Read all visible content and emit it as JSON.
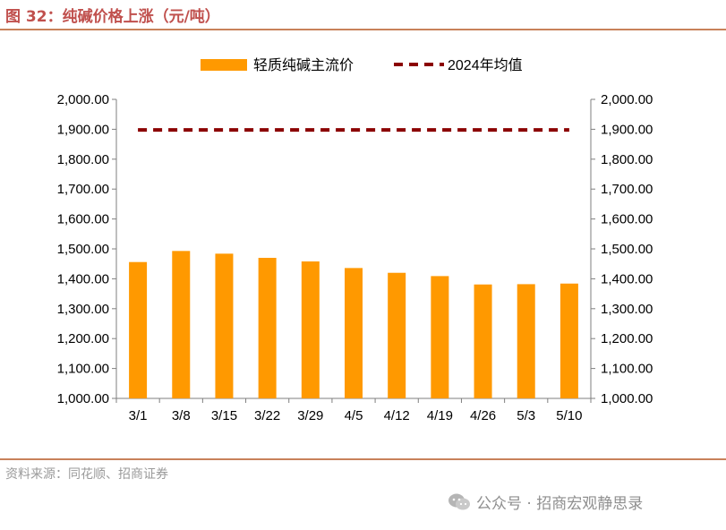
{
  "figure": {
    "title": "图 32：纯碱价格上涨（元/吨）",
    "source": "资料来源：同花顺、招商证券",
    "watermark": "公众号 · 招商宏观静思录"
  },
  "colors": {
    "bar": "#ff9900",
    "avg_line": "#8b0000",
    "accent": "#c0504d"
  },
  "chart_data": {
    "type": "bar",
    "categories": [
      "3/1",
      "3/8",
      "3/15",
      "3/22",
      "3/29",
      "4/5",
      "4/12",
      "4/19",
      "4/26",
      "5/3",
      "5/10"
    ],
    "series": [
      {
        "name": "轻质纯碱主流价",
        "type": "bar",
        "values": [
          1456,
          1493,
          1484,
          1470,
          1458,
          1436,
          1420,
          1409,
          1381,
          1382,
          1384
        ]
      },
      {
        "name": "2024年均值",
        "type": "line",
        "style": "dashed",
        "values": [
          1898,
          1898,
          1898,
          1898,
          1898,
          1898,
          1898,
          1898,
          1898,
          1898,
          1898
        ]
      }
    ],
    "ylim": [
      1000,
      2000
    ],
    "yticks": [
      "1,000.00",
      "1,100.00",
      "1,200.00",
      "1,300.00",
      "1,400.00",
      "1,500.00",
      "1,600.00",
      "1,700.00",
      "1,800.00",
      "1,900.00",
      "2,000.00"
    ],
    "y2ticks": [
      "1,000.00",
      "1,100.00",
      "1,200.00",
      "1,300.00",
      "1,400.00",
      "1,500.00",
      "1,600.00",
      "1,700.00",
      "1,800.00",
      "1,900.00",
      "2,000.00"
    ],
    "legend_position": "top-center",
    "grid": false
  }
}
